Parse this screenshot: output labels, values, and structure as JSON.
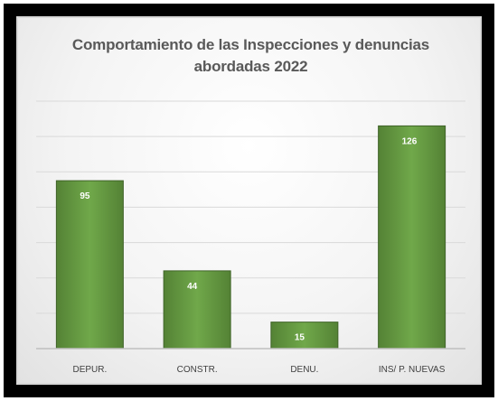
{
  "chart_data": {
    "type": "bar",
    "title_line1": "Comportamiento de las Inspecciones y denuncias",
    "title_line2": "abordadas 2022",
    "categories": [
      "DEPUR.",
      "CONSTR.",
      "DENU.",
      "INS/ P. NUEVAS"
    ],
    "values": [
      95,
      44,
      15,
      126
    ],
    "ylim": [
      0,
      140
    ],
    "gridlines": true,
    "legend": "none",
    "bar_color": "#548235",
    "bar_highlight": "#70a84a"
  }
}
